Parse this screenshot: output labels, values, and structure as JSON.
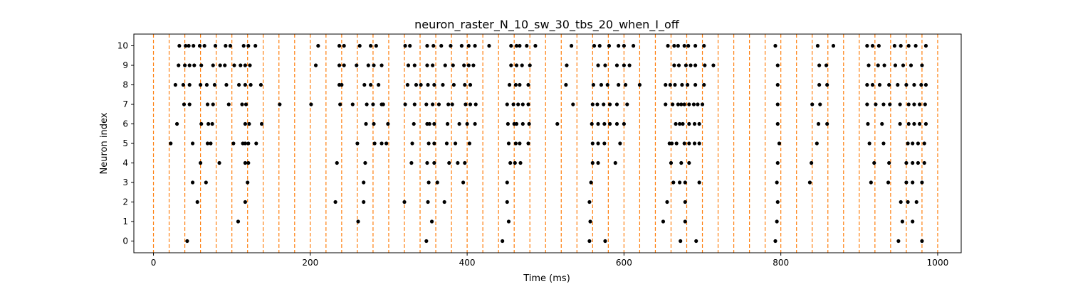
{
  "chart_data": {
    "type": "scatter",
    "title": "neuron_raster_N_10_sw_30_tbs_20_when_I_off",
    "xlabel": "Time (ms)",
    "ylabel": "Neuron index",
    "xlim": [
      -25,
      1030
    ],
    "ylim": [
      -0.6,
      10.6
    ],
    "xticks": [
      0,
      200,
      400,
      600,
      800,
      1000
    ],
    "xtick_labels": [
      "0",
      "200",
      "400",
      "600",
      "800",
      "1000"
    ],
    "yticks": [
      0,
      1,
      2,
      3,
      4,
      5,
      6,
      7,
      8,
      9,
      10
    ],
    "ytick_labels": [
      "0",
      "1",
      "2",
      "3",
      "4",
      "5",
      "6",
      "7",
      "8",
      "9",
      "10"
    ],
    "grid": false,
    "dot_color": "#000000",
    "vline_color": "#ff7f0e",
    "vlines": [
      0,
      20,
      40,
      60,
      80,
      100,
      120,
      140,
      160,
      180,
      200,
      220,
      240,
      260,
      280,
      300,
      320,
      340,
      360,
      380,
      400,
      420,
      440,
      460,
      480,
      500,
      520,
      540,
      560,
      580,
      600,
      620,
      640,
      660,
      680,
      700,
      720,
      740,
      760,
      780,
      800,
      820,
      840,
      860,
      880,
      900,
      920,
      940,
      960,
      980,
      1000
    ],
    "series": [
      {
        "neuron": 0,
        "spikes": [
          43,
          348,
          445,
          556,
          576,
          672,
          692,
          793,
          950,
          980
        ]
      },
      {
        "neuron": 1,
        "spikes": [
          108,
          261,
          355,
          453,
          557,
          650,
          678,
          795,
          955,
          968
        ]
      },
      {
        "neuron": 2,
        "spikes": [
          56,
          117,
          232,
          268,
          320,
          350,
          371,
          451,
          556,
          655,
          678,
          796,
          953,
          962,
          973
        ]
      },
      {
        "neuron": 3,
        "spikes": [
          50,
          67,
          120,
          268,
          351,
          362,
          395,
          451,
          558,
          663,
          671,
          678,
          696,
          795,
          837,
          915,
          937,
          960,
          968,
          980
        ]
      },
      {
        "neuron": 4,
        "spikes": [
          60,
          84,
          117,
          121,
          234,
          270,
          329,
          349,
          358,
          377,
          388,
          397,
          455,
          461,
          468,
          560,
          567,
          589,
          660,
          673,
          683,
          796,
          839,
          919,
          938,
          960,
          968,
          975,
          983
        ]
      },
      {
        "neuron": 5,
        "spikes": [
          22,
          50,
          69,
          73,
          102,
          114,
          117,
          121,
          131,
          260,
          282,
          291,
          297,
          330,
          351,
          358,
          374,
          385,
          403,
          453,
          462,
          467,
          478,
          560,
          567,
          575,
          595,
          658,
          661,
          667,
          677,
          683,
          690,
          696,
          798,
          846,
          913,
          931,
          962,
          968,
          975,
          983
        ]
      },
      {
        "neuron": 6,
        "spikes": [
          30,
          61,
          70,
          75,
          117,
          122,
          138,
          271,
          281,
          299,
          332,
          349,
          352,
          358,
          375,
          390,
          400,
          410,
          452,
          460,
          463,
          471,
          479,
          515,
          559,
          567,
          575,
          582,
          591,
          600,
          666,
          671,
          675,
          683,
          690,
          696,
          796,
          848,
          859,
          911,
          929,
          952,
          963,
          970,
          977,
          985
        ]
      },
      {
        "neuron": 7,
        "spikes": [
          39,
          46,
          69,
          76,
          96,
          113,
          118,
          161,
          201,
          238,
          254,
          272,
          280,
          291,
          293,
          321,
          333,
          348,
          356,
          364,
          376,
          381,
          398,
          404,
          411,
          451,
          459,
          465,
          471,
          478,
          535,
          560,
          566,
          574,
          582,
          591,
          604,
          653,
          662,
          669,
          673,
          677,
          683,
          689,
          694,
          700,
          796,
          840,
          850,
          910,
          921,
          931,
          939,
          952,
          963,
          970,
          977,
          984
        ]
      },
      {
        "neuron": 8,
        "spikes": [
          28,
          38,
          46,
          60,
          68,
          78,
          93,
          109,
          117,
          124,
          137,
          237,
          240,
          269,
          277,
          287,
          324,
          335,
          341,
          350,
          358,
          369,
          383,
          397,
          404,
          454,
          462,
          467,
          478,
          526,
          561,
          571,
          579,
          593,
          602,
          620,
          653,
          659,
          665,
          674,
          681,
          691,
          702,
          796,
          849,
          859,
          910,
          917,
          926,
          938,
          949,
          960,
          970,
          979,
          985
        ]
      },
      {
        "neuron": 9,
        "spikes": [
          32,
          40,
          46,
          52,
          61,
          76,
          85,
          91,
          103,
          111,
          117,
          123,
          207,
          237,
          243,
          259,
          274,
          281,
          291,
          325,
          333,
          349,
          356,
          372,
          382,
          396,
          402,
          408,
          456,
          463,
          470,
          480,
          527,
          567,
          576,
          591,
          600,
          607,
          664,
          670,
          679,
          685,
          691,
          703,
          714,
          796,
          849,
          858,
          912,
          924,
          932,
          946,
          956,
          966,
          980
        ]
      },
      {
        "neuron": 10,
        "spikes": [
          33,
          41,
          45,
          51,
          59,
          65,
          79,
          92,
          98,
          115,
          121,
          130,
          210,
          237,
          243,
          263,
          277,
          284,
          321,
          327,
          349,
          357,
          367,
          379,
          393,
          402,
          410,
          428,
          456,
          463,
          467,
          476,
          487,
          533,
          562,
          569,
          581,
          593,
          600,
          612,
          656,
          664,
          669,
          677,
          682,
          691,
          702,
          793,
          847,
          867,
          910,
          917,
          925,
          945,
          953,
          963,
          972,
          985
        ]
      }
    ]
  }
}
